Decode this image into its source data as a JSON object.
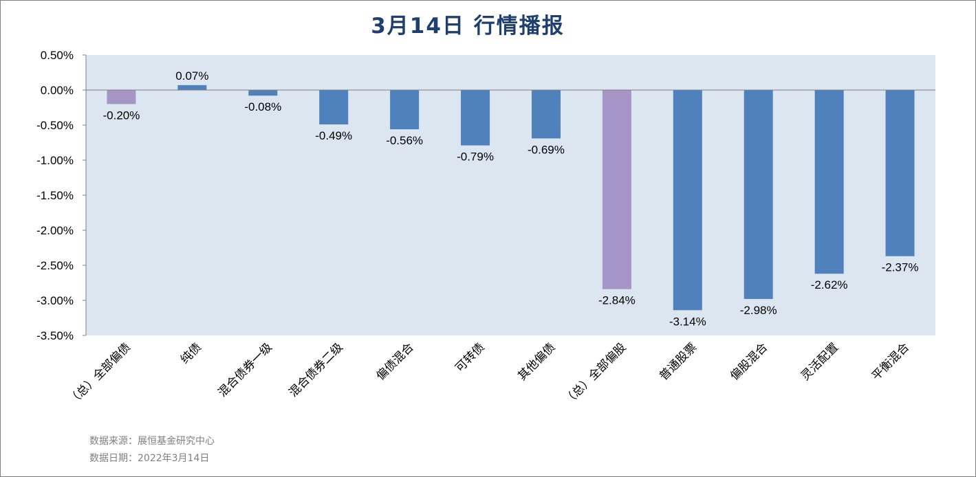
{
  "chart_data": {
    "type": "bar",
    "title": "3月14日  行情播报",
    "categories": [
      "（总）全部偏债",
      "纯债",
      "混合债券一级",
      "混合债券二级",
      "偏债混合",
      "可转债",
      "其他偏债",
      "（总）全部偏股",
      "普通股票",
      "偏股混合",
      "灵活配置",
      "平衡混合"
    ],
    "values": [
      -0.2,
      0.07,
      -0.08,
      -0.49,
      -0.56,
      -0.79,
      -0.69,
      -2.84,
      -3.14,
      -2.98,
      -2.62,
      -2.37
    ],
    "value_labels": [
      "-0.20%",
      "0.07%",
      "-0.08%",
      "-0.49%",
      "-0.56%",
      "-0.79%",
      "-0.69%",
      "-2.84%",
      "-3.14%",
      "-2.98%",
      "-2.62%",
      "-2.37%"
    ],
    "highlight_indices": [
      0,
      7
    ],
    "y_ticks": [
      0.5,
      0.0,
      -0.5,
      -1.0,
      -1.5,
      -2.0,
      -2.5,
      -3.0,
      -3.5
    ],
    "y_tick_labels": [
      "0.50%",
      "0.00%",
      "-0.50%",
      "-1.00%",
      "-1.50%",
      "-2.00%",
      "-2.50%",
      "-3.00%",
      "-3.50%"
    ],
    "ylim": [
      -3.5,
      0.5
    ],
    "grid": false,
    "colors": {
      "bar": "#4f81bd",
      "highlight": "#a696c8",
      "plot_bg": "#dce6f1",
      "title": "#1f3f6e"
    }
  },
  "footer": {
    "source": "数据来源：展恒基金研究中心",
    "date": "数据日期：2022年3月14日"
  }
}
